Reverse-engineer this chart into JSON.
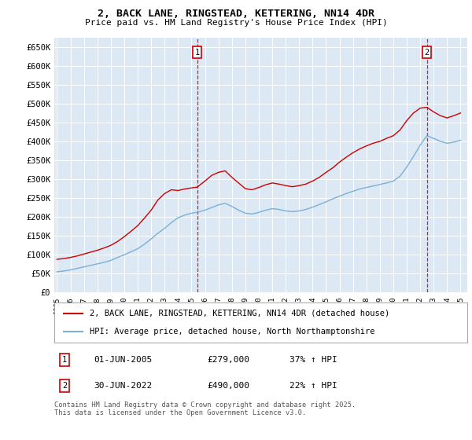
{
  "title": "2, BACK LANE, RINGSTEAD, KETTERING, NN14 4DR",
  "subtitle": "Price paid vs. HM Land Registry's House Price Index (HPI)",
  "plot_bg_color": "#dce9f5",
  "ylim": [
    0,
    675000
  ],
  "yticks": [
    0,
    50000,
    100000,
    150000,
    200000,
    250000,
    300000,
    350000,
    400000,
    450000,
    500000,
    550000,
    600000,
    650000
  ],
  "ytick_labels": [
    "£0",
    "£50K",
    "£100K",
    "£150K",
    "£200K",
    "£250K",
    "£300K",
    "£350K",
    "£400K",
    "£450K",
    "£500K",
    "£550K",
    "£600K",
    "£650K"
  ],
  "red_line_color": "#cc0000",
  "blue_line_color": "#7bafd4",
  "sale1_date": 2005.42,
  "sale1_price": 279000,
  "sale1_label": "1",
  "sale2_date": 2022.5,
  "sale2_price": 490000,
  "sale2_label": "2",
  "legend_red": "2, BACK LANE, RINGSTEAD, KETTERING, NN14 4DR (detached house)",
  "legend_blue": "HPI: Average price, detached house, North Northamptonshire",
  "annotation1_date": "01-JUN-2005",
  "annotation1_price": "£279,000",
  "annotation1_pct": "37% ↑ HPI",
  "annotation2_date": "30-JUN-2022",
  "annotation2_price": "£490,000",
  "annotation2_pct": "22% ↑ HPI",
  "footer": "Contains HM Land Registry data © Crown copyright and database right 2025.\nThis data is licensed under the Open Government Licence v3.0.",
  "xmin": 1994.8,
  "xmax": 2025.5,
  "years_hpi": [
    1995,
    1995.5,
    1996,
    1996.5,
    1997,
    1997.5,
    1998,
    1998.5,
    1999,
    1999.5,
    2000,
    2000.5,
    2001,
    2001.5,
    2002,
    2002.5,
    2003,
    2003.5,
    2004,
    2004.5,
    2005,
    2005.5,
    2006,
    2006.5,
    2007,
    2007.5,
    2008,
    2008.5,
    2009,
    2009.5,
    2010,
    2010.5,
    2011,
    2011.5,
    2012,
    2012.5,
    2013,
    2013.5,
    2014,
    2014.5,
    2015,
    2015.5,
    2016,
    2016.5,
    2017,
    2017.5,
    2018,
    2018.5,
    2019,
    2019.5,
    2020,
    2020.5,
    2021,
    2021.5,
    2022,
    2022.5,
    2023,
    2023.5,
    2024,
    2024.5,
    2025
  ],
  "hpi_values": [
    55000,
    57000,
    60000,
    64000,
    68000,
    72000,
    76000,
    80000,
    85000,
    93000,
    100000,
    108000,
    116000,
    128000,
    142000,
    157000,
    170000,
    185000,
    198000,
    205000,
    210000,
    213000,
    218000,
    225000,
    232000,
    236000,
    228000,
    218000,
    210000,
    208000,
    212000,
    218000,
    222000,
    220000,
    216000,
    214000,
    216000,
    220000,
    226000,
    233000,
    240000,
    248000,
    255000,
    262000,
    268000,
    274000,
    278000,
    282000,
    286000,
    290000,
    295000,
    308000,
    332000,
    360000,
    390000,
    415000,
    408000,
    400000,
    395000,
    398000,
    403000
  ],
  "years_red": [
    1995,
    1995.5,
    1996,
    1996.5,
    1997,
    1997.5,
    1998,
    1998.5,
    1999,
    1999.5,
    2000,
    2000.5,
    2001,
    2001.5,
    2002,
    2002.5,
    2003,
    2003.5,
    2004,
    2004.5,
    2005,
    2005.42,
    2006,
    2006.5,
    2007,
    2007.5,
    2008,
    2008.5,
    2009,
    2009.5,
    2010,
    2010.5,
    2011,
    2011.5,
    2012,
    2012.5,
    2013,
    2013.5,
    2014,
    2014.5,
    2015,
    2015.5,
    2016,
    2016.5,
    2017,
    2017.5,
    2018,
    2018.5,
    2019,
    2019.5,
    2020,
    2020.5,
    2021,
    2021.5,
    2022,
    2022.5,
    2023,
    2023.5,
    2024,
    2024.5,
    2025
  ],
  "red_values": [
    88000,
    90000,
    93000,
    97000,
    102000,
    107000,
    112000,
    118000,
    125000,
    135000,
    148000,
    162000,
    177000,
    197000,
    218000,
    245000,
    262000,
    272000,
    270000,
    274000,
    277000,
    279000,
    295000,
    310000,
    318000,
    322000,
    305000,
    290000,
    275000,
    272000,
    278000,
    285000,
    290000,
    287000,
    283000,
    280000,
    283000,
    287000,
    295000,
    305000,
    318000,
    330000,
    345000,
    358000,
    370000,
    380000,
    388000,
    395000,
    400000,
    408000,
    415000,
    430000,
    455000,
    475000,
    488000,
    490000,
    478000,
    468000,
    462000,
    468000,
    475000
  ]
}
